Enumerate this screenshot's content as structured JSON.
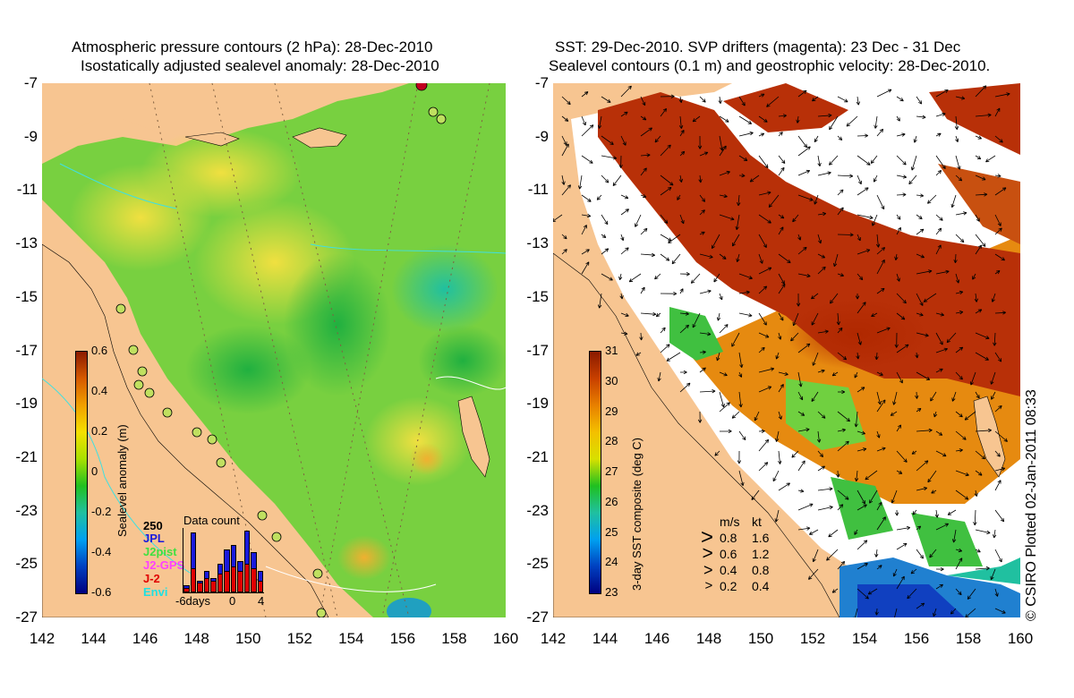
{
  "left_panel": {
    "title_line1": "Atmospheric pressure contours (2 hPa): 28-Dec-2010",
    "title_line2": "Isostatically adjusted sealevel anomaly: 28-Dec-2010",
    "colorbar": {
      "label": "Sealevel anomaly (m)",
      "ticks": [
        "0.6",
        "0.4",
        "0.2",
        "0",
        "-0.2",
        "-0.4",
        "-0.6"
      ],
      "colors": [
        "#8b1a00",
        "#d65a00",
        "#f0a000",
        "#f4e000",
        "#a8e000",
        "#20c020",
        "#20c0a0",
        "#00a0f0",
        "#0040c0",
        "#000080"
      ]
    },
    "data_count": {
      "title": "Data count",
      "max_label": "250",
      "series": [
        {
          "name": "JPL",
          "color": "#1a1adc"
        },
        {
          "name": "J2pist",
          "color": "#40e040"
        },
        {
          "name": "J2-GPS",
          "color": "#ff40ff"
        },
        {
          "name": "J-2",
          "color": "#e00000"
        },
        {
          "name": "Envi",
          "color": "#20e0e0"
        }
      ],
      "x_ticks": [
        "-6days",
        "0",
        "4"
      ],
      "totals": [
        30,
        250,
        50,
        90,
        60,
        120,
        180,
        200,
        130,
        260,
        170,
        90
      ],
      "red_part": [
        20,
        100,
        40,
        60,
        50,
        80,
        90,
        110,
        90,
        120,
        100,
        50
      ]
    }
  },
  "right_panel": {
    "title_line1": "SST: 29-Dec-2010. SVP drifters (magenta): 23 Dec - 31 Dec",
    "title_line2": "Sealevel contours (0.1 m) and geostrophic velocity: 28-Dec-2010.",
    "colorbar": {
      "label": "3-day SST composite (deg C)",
      "ticks": [
        "31",
        "30",
        "29",
        "28",
        "27",
        "26",
        "25",
        "24",
        "23"
      ],
      "colors": [
        "#8b1a00",
        "#c84000",
        "#e88000",
        "#f4c000",
        "#d8e000",
        "#20c020",
        "#20c0a0",
        "#00a0f0",
        "#0040c0",
        "#000080"
      ]
    },
    "velocity_legend": {
      "header_ms": "m/s",
      "header_kt": "kt",
      "rows": [
        {
          "ms": "0.8",
          "kt": "1.6"
        },
        {
          "ms": "0.6",
          "kt": "1.2"
        },
        {
          "ms": "0.4",
          "kt": "0.8"
        },
        {
          "ms": "0.2",
          "kt": "0.4"
        }
      ]
    }
  },
  "axes": {
    "y_ticks": [
      "-7",
      "-9",
      "-11",
      "-13",
      "-15",
      "-17",
      "-19",
      "-21",
      "-23",
      "-25",
      "-27"
    ],
    "x_ticks": [
      "142",
      "144",
      "146",
      "148",
      "150",
      "152",
      "154",
      "156",
      "158",
      "160"
    ],
    "lon_range": [
      142,
      160
    ],
    "lat_range": [
      -7,
      -27
    ]
  },
  "copyright": "© CSIRO Plotted 02-Jan-2011 08:33",
  "colors": {
    "land": "#f7c591",
    "ocean_green": "#40c840",
    "ocean_yellow": "#e8e840",
    "sst_red": "#b83000",
    "sst_orange": "#e08800"
  }
}
